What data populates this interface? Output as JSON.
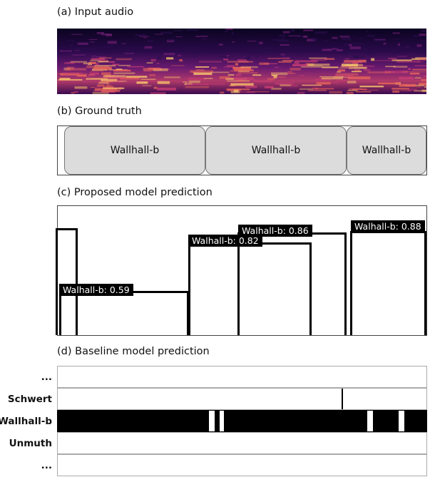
{
  "panels": {
    "a": {
      "title": "(a) Input audio"
    },
    "b": {
      "title": "(b) Ground truth"
    },
    "c": {
      "title": "(c) Proposed model prediction"
    },
    "d": {
      "title": "(d) Baseline model prediction"
    }
  },
  "ground_truth": {
    "segments": [
      {
        "label": "Wallhall-b",
        "start": 0.02,
        "end": 0.4
      },
      {
        "label": "Wallhall-b",
        "start": 0.4,
        "end": 0.78
      },
      {
        "label": "Wallhall-b",
        "start": 0.78,
        "end": 1.0
      }
    ]
  },
  "proposed": {
    "predictions": [
      {
        "label": "Walhall-b: 0.59",
        "start": 0.005,
        "end": 0.355,
        "score": 0.59
      },
      {
        "label": "Walhall-b: 0.82",
        "start": 0.355,
        "end": 0.685,
        "score": 0.82
      },
      {
        "label": "Walhall-b: 0.86",
        "start": 0.49,
        "end": 0.78,
        "score": 0.86
      },
      {
        "label": "Walhall-b: 0.88",
        "start": 0.795,
        "end": 1.0,
        "score": 0.88
      }
    ],
    "early_box": {
      "start": 0.0,
      "end": 0.055,
      "score": 0.82
    }
  },
  "baseline": {
    "rows": [
      "...",
      "Schwert",
      "Wallhall-b",
      "Unmuth",
      "..."
    ],
    "active_row": "Wallhall-b",
    "wallhall_gaps": [
      [
        0.41,
        0.425
      ],
      [
        0.44,
        0.45
      ],
      [
        0.84,
        0.855
      ],
      [
        0.925,
        0.94
      ]
    ],
    "schwert_spike": 0.77
  },
  "colors": {
    "box": "#000000",
    "gt_fill": "#dcdcdc",
    "active": "#000000"
  }
}
